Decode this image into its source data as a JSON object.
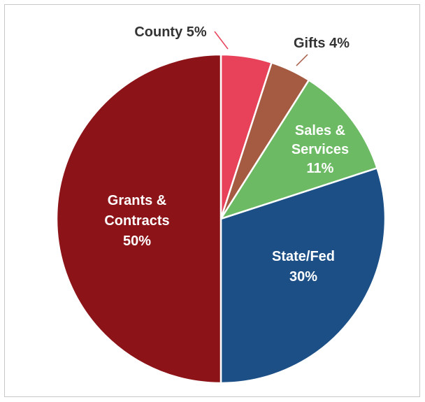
{
  "chart_data": {
    "type": "pie",
    "title": "",
    "start": "12 o'clock",
    "direction": "clockwise",
    "slices": [
      {
        "label": "County",
        "value": 5,
        "text": [
          "County 5%"
        ],
        "color": "#e8415a",
        "label_color": "#333333",
        "label_placement": "outside"
      },
      {
        "label": "Gifts",
        "value": 4,
        "text": [
          "Gifts 4%"
        ],
        "color": "#a55a42",
        "label_color": "#333333",
        "label_placement": "outside"
      },
      {
        "label": "Sales & Services",
        "value": 11,
        "text": [
          "Sales &",
          "Services",
          "11%"
        ],
        "color": "#6dba64",
        "label_color": "#ffffff",
        "label_placement": "inside"
      },
      {
        "label": "State/Fed",
        "value": 30,
        "text": [
          "State/Fed",
          "30%"
        ],
        "color": "#1b4f86",
        "label_color": "#ffffff",
        "label_placement": "inside"
      },
      {
        "label": "Grants & Contracts",
        "value": 50,
        "text": [
          "Grants &",
          "Contracts",
          "50%"
        ],
        "color": "#8c1419",
        "label_color": "#ffffff",
        "label_placement": "inside"
      }
    ]
  }
}
